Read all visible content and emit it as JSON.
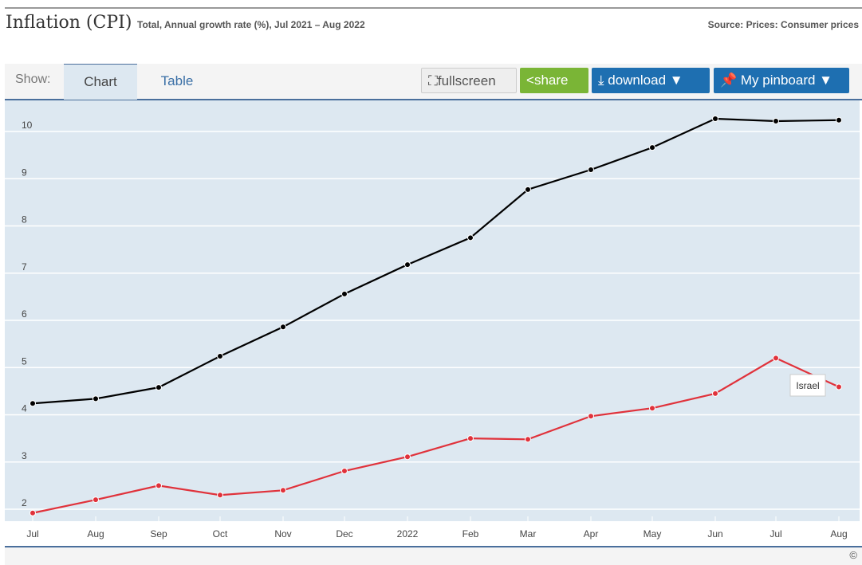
{
  "header": {
    "title": "Inflation (CPI)",
    "subtitle": "Total, Annual growth rate (%), Jul 2021 – Aug 2022",
    "source": "Source: Prices: Consumer prices"
  },
  "toolbar": {
    "show_label": "Show:",
    "tabs": [
      "Chart",
      "Table"
    ],
    "fullscreen": "fullscreen",
    "share": "share",
    "download": "download ▼",
    "pinboard": "My pinboard ▼"
  },
  "footer": {
    "copyright": "©"
  },
  "colors": {
    "series1": "#000000",
    "series2": "#e0323b",
    "background": "#dde8f1"
  },
  "chart_data": {
    "type": "line",
    "title": "Inflation (CPI)",
    "x": [
      "Jul",
      "Aug",
      "Sep",
      "Oct",
      "Nov",
      "Dec",
      "2022",
      "Feb",
      "Mar",
      "Apr",
      "May",
      "Jun",
      "Jul",
      "Aug"
    ],
    "yticks": [
      2,
      3,
      4,
      5,
      6,
      7,
      8,
      9,
      10
    ],
    "ylim": [
      1.75,
      10.4
    ],
    "series": [
      {
        "name": "",
        "color": "#000000",
        "values": [
          4.24,
          4.34,
          4.58,
          5.24,
          5.86,
          6.56,
          7.18,
          7.75,
          8.77,
          9.19,
          9.66,
          10.27,
          10.22,
          10.24
        ]
      },
      {
        "name": "Israel",
        "color": "#e0323b",
        "values": [
          1.92,
          2.2,
          2.5,
          2.3,
          2.4,
          2.81,
          3.11,
          3.5,
          3.48,
          3.97,
          4.14,
          4.45,
          5.2,
          4.59
        ]
      }
    ],
    "tooltip": "Israel"
  }
}
